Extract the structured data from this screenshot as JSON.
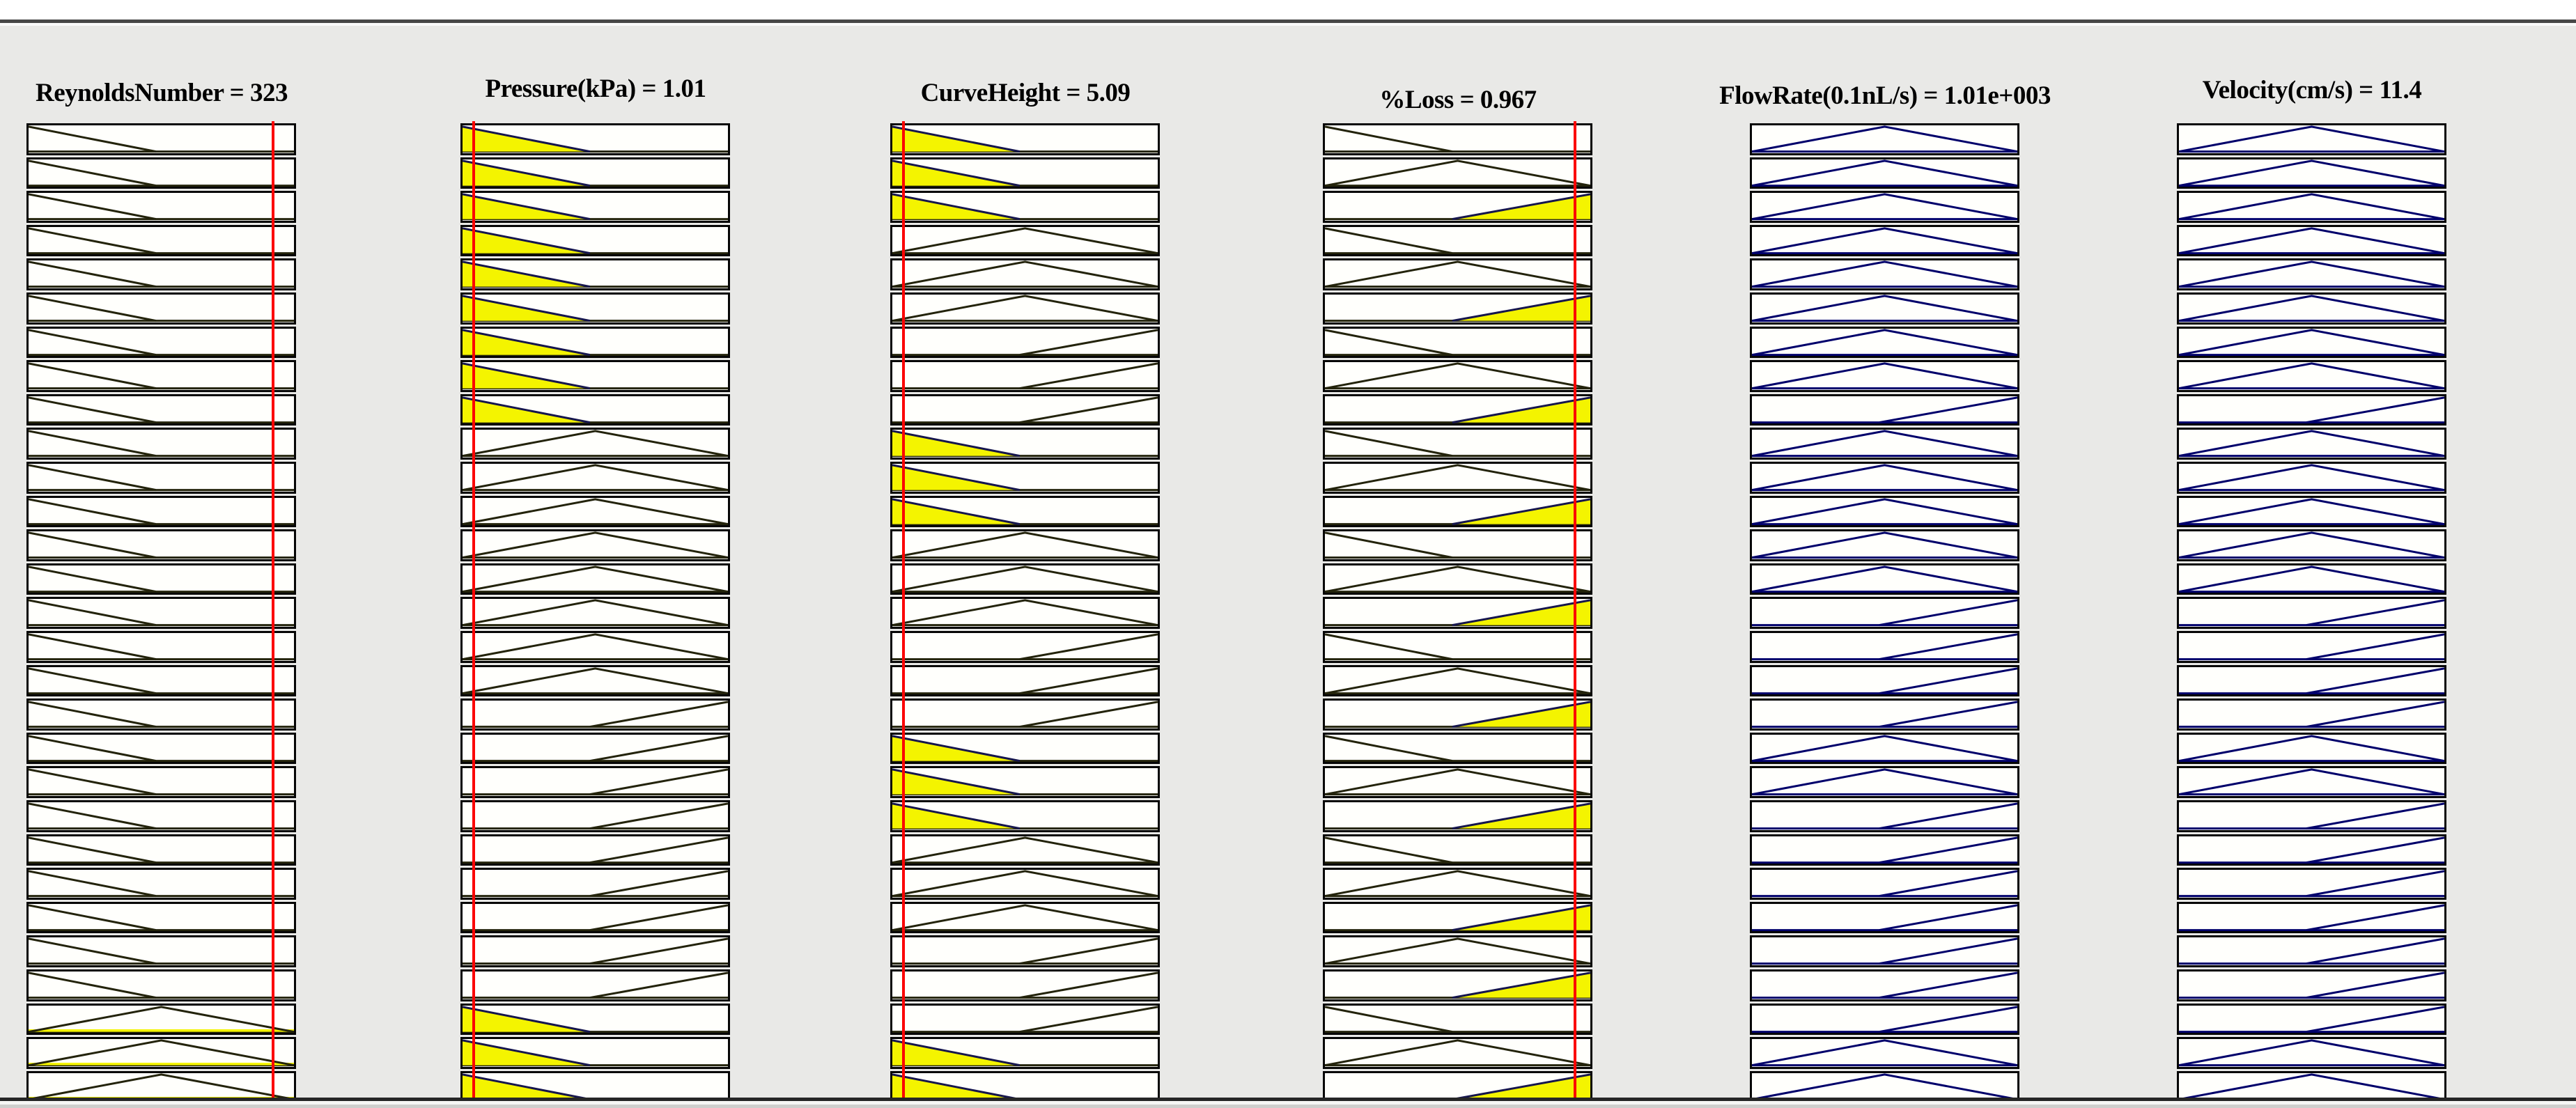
{
  "viewer": {
    "kind": "fuzzy-rule-viewer",
    "rule_count": 29,
    "last_row_clipped": true
  },
  "colors": {
    "background": "#e9e9e7",
    "cell_fill": "#fffffc",
    "cell_border": "#060606",
    "membership_fill_yellow": "#f4f400",
    "input_stroke": "#23230b",
    "filled_edge_stroke": "#16164d",
    "output_stroke": "#00006b",
    "index_line_red": "#fb0404"
  },
  "shape_legend": {
    "d": "ramp-down-outline",
    "t": "triangle-outline",
    "r": "ramp-up-outline",
    "Yd": "ramp-down-filled-yellow",
    "Yr": "ramp-up-filled-yellow",
    "ty": "triangle-outline-with-yellow-base-strip"
  },
  "columns": [
    {
      "id": "reynolds-number",
      "header": "ReynoldsNumber = 323",
      "variable": "ReynoldsNumber",
      "value": "323",
      "role": "input",
      "index_line_pct": 91,
      "rows": [
        "d",
        "d",
        "d",
        "d",
        "d",
        "d",
        "d",
        "d",
        "d",
        "d",
        "d",
        "d",
        "d",
        "d",
        "d",
        "d",
        "d",
        "d",
        "d",
        "d",
        "d",
        "d",
        "d",
        "d",
        "d",
        "d",
        "ty",
        "ty",
        "ty"
      ]
    },
    {
      "id": "pressure",
      "header": "Pressure(kPa) = 1.01",
      "variable": "Pressure(kPa)",
      "value": "1.01",
      "role": "input",
      "index_line_pct": 4.5,
      "rows": [
        "Yd",
        "Yd",
        "Yd",
        "Yd",
        "Yd",
        "Yd",
        "Yd",
        "Yd",
        "Yd",
        "t",
        "t",
        "t",
        "t",
        "t",
        "t",
        "t",
        "t",
        "r",
        "r",
        "r",
        "r",
        "r",
        "r",
        "r",
        "r",
        "r",
        "Yd",
        "Yd",
        "Yd"
      ]
    },
    {
      "id": "curve-height",
      "header": "CurveHeight = 5.09",
      "variable": "CurveHeight",
      "value": "5.09",
      "role": "input",
      "index_line_pct": 4.5,
      "rows": [
        "Yd",
        "Yd",
        "Yd",
        "t",
        "t",
        "t",
        "r",
        "r",
        "r",
        "Yd",
        "Yd",
        "Yd",
        "t",
        "t",
        "t",
        "r",
        "r",
        "r",
        "Yd",
        "Yd",
        "Yd",
        "t",
        "t",
        "t",
        "r",
        "r",
        "r",
        "Yd",
        "Yd"
      ]
    },
    {
      "id": "percent-loss",
      "header": "%Loss = 0.967",
      "variable": "%Loss",
      "value": "0.967",
      "role": "input",
      "index_line_pct": 93,
      "rows": [
        "d",
        "t",
        "Yr",
        "d",
        "t",
        "Yr",
        "d",
        "t",
        "Yr",
        "d",
        "t",
        "Yr",
        "d",
        "t",
        "Yr",
        "d",
        "t",
        "Yr",
        "d",
        "t",
        "Yr",
        "d",
        "t",
        "Yr",
        "t",
        "Yr",
        "d",
        "t",
        "Yr"
      ]
    },
    {
      "id": "flow-rate",
      "header": "FlowRate(0.1nL/s) = 1.01e+003",
      "variable": "FlowRate(0.1nL/s)",
      "value": "1.01e+003",
      "role": "output",
      "index_line_pct": null,
      "rows": [
        "t",
        "t",
        "t",
        "t",
        "t",
        "t",
        "t",
        "t",
        "r",
        "t",
        "t",
        "t",
        "t",
        "t",
        "r",
        "r",
        "r",
        "r",
        "t",
        "t",
        "r",
        "r",
        "r",
        "r",
        "r",
        "r",
        "r",
        "t",
        "t"
      ]
    },
    {
      "id": "velocity",
      "header": "Velocity(cm/s) = 11.4",
      "variable": "Velocity(cm/s)",
      "value": "11.4",
      "role": "output",
      "index_line_pct": null,
      "rows": [
        "t",
        "t",
        "t",
        "t",
        "t",
        "t",
        "t",
        "t",
        "r",
        "t",
        "t",
        "t",
        "t",
        "t",
        "r",
        "r",
        "r",
        "r",
        "t",
        "t",
        "r",
        "r",
        "r",
        "r",
        "r",
        "r",
        "r",
        "t",
        "t"
      ]
    }
  ]
}
